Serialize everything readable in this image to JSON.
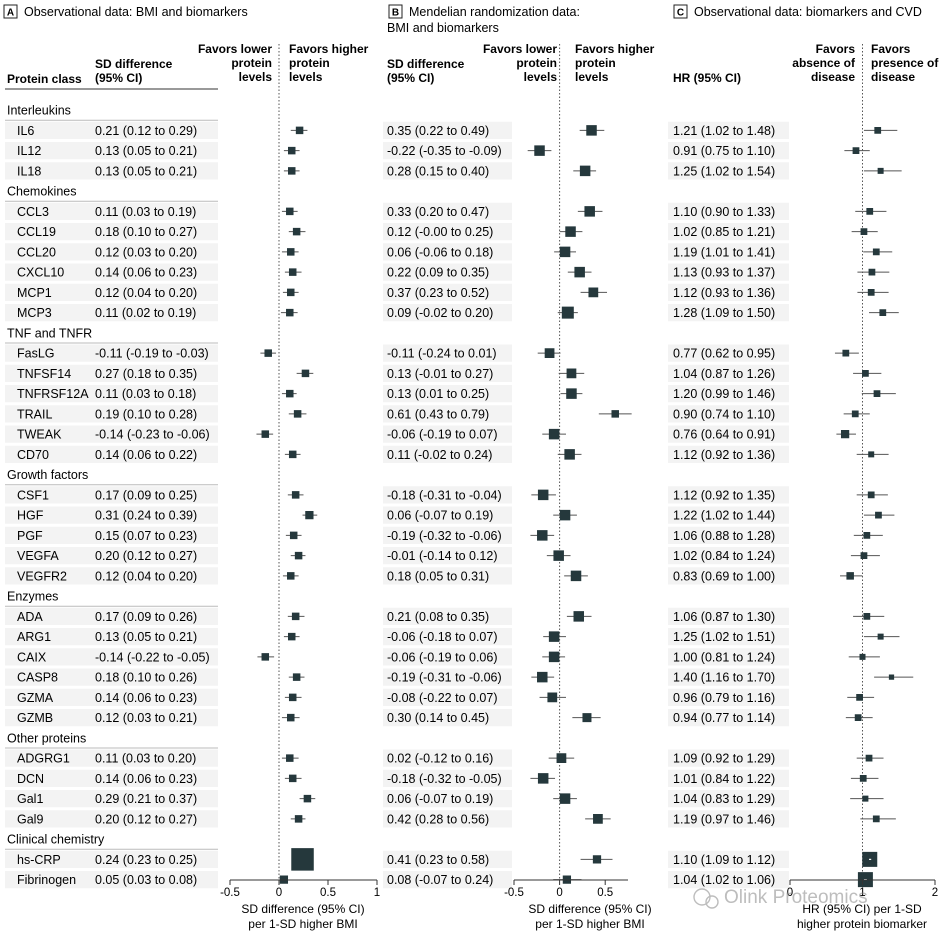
{
  "panels": [
    {
      "letter": "A",
      "title_lines": [
        "Observational data: BMI and biomarkers"
      ]
    },
    {
      "letter": "B",
      "title_lines": [
        "Mendelian randomization data:",
        "BMI and biomarkers"
      ]
    },
    {
      "letter": "C",
      "title_lines": [
        "Observational data: biomarkers and CVD"
      ]
    }
  ],
  "headers": {
    "protein_class": "Protein class",
    "a_col": [
      "SD difference",
      "(95% CI)"
    ],
    "a_favors_lower": [
      "Favors lower",
      "protein",
      "levels"
    ],
    "a_favors_higher": [
      "Favors higher",
      "protein",
      "levels"
    ],
    "b_col": [
      "SD difference",
      "(95% CI)"
    ],
    "b_favors_lower": [
      "Favors lower",
      "protein",
      "levels"
    ],
    "b_favors_higher": [
      "Favors higher",
      "protein",
      "levels"
    ],
    "c_col": [
      "HR (95% CI)"
    ],
    "c_favors_absence": [
      "Favors",
      "absence of",
      "disease"
    ],
    "c_favors_presence": [
      "Favors",
      "presence of",
      "disease"
    ]
  },
  "axes": {
    "a": {
      "ticks": [
        "-0.5",
        "0",
        "0.5",
        "1"
      ],
      "label": [
        "SD difference (95% CI)",
        "per 1-SD higher BMI"
      ]
    },
    "b": {
      "ticks": [
        "-0.5",
        "0",
        "0.5"
      ],
      "label": [
        "SD difference (95% CI)",
        "per 1-SD higher BMI"
      ]
    },
    "c": {
      "ticks": [
        "0",
        "1",
        "2"
      ],
      "label": [
        "HR (95% CI) per 1-SD",
        "higher protein biomarker"
      ]
    }
  },
  "watermark": "Olink Proteomics",
  "chart_data": {
    "type": "forest",
    "panels": [
      {
        "id": "A",
        "measure": "SD difference per 1-SD higher BMI",
        "xlim": [
          -0.5,
          1
        ],
        "ref": 0
      },
      {
        "id": "B",
        "measure": "SD difference per 1-SD higher BMI (Mendelian randomization)",
        "xlim": [
          -0.5,
          0.75
        ],
        "ref": 0
      },
      {
        "id": "C",
        "measure": "HR per 1-SD higher protein biomarker",
        "xlim": [
          0,
          2
        ],
        "ref": 1
      }
    ],
    "rows": [
      {
        "kind": "group",
        "label": "Interleukins"
      },
      {
        "kind": "item",
        "label": "IL6",
        "a": {
          "text": "0.21 (0.12 to 0.29)",
          "est": 0.21,
          "lo": 0.12,
          "hi": 0.29,
          "w": 1.0
        },
        "b": {
          "text": "0.35 (0.22 to 0.49)",
          "est": 0.35,
          "lo": 0.22,
          "hi": 0.49,
          "w": 1.4
        },
        "c": {
          "text": "1.21 (1.02 to 1.48)",
          "est": 1.21,
          "lo": 1.02,
          "hi": 1.48,
          "w": 0.9
        }
      },
      {
        "kind": "item",
        "label": "IL12",
        "a": {
          "text": "0.13 (0.05 to 0.21)",
          "est": 0.13,
          "lo": 0.05,
          "hi": 0.21,
          "w": 1.0
        },
        "b": {
          "text": "-0.22 (-0.35 to -0.09)",
          "est": -0.22,
          "lo": -0.35,
          "hi": -0.09,
          "w": 1.4
        },
        "c": {
          "text": "0.91 (0.75 to 1.10)",
          "est": 0.91,
          "lo": 0.75,
          "hi": 1.1,
          "w": 0.9
        }
      },
      {
        "kind": "item",
        "label": "IL18",
        "a": {
          "text": "0.13 (0.05 to 0.21)",
          "est": 0.13,
          "lo": 0.05,
          "hi": 0.21,
          "w": 1.0
        },
        "b": {
          "text": "0.28 (0.15 to 0.40)",
          "est": 0.28,
          "lo": 0.15,
          "hi": 0.4,
          "w": 1.4
        },
        "c": {
          "text": "1.25 (1.02 to 1.54)",
          "est": 1.25,
          "lo": 1.02,
          "hi": 1.54,
          "w": 0.8
        }
      },
      {
        "kind": "group",
        "label": "Chemokines"
      },
      {
        "kind": "item",
        "label": "CCL3",
        "a": {
          "text": "0.11 (0.03 to 0.19)",
          "est": 0.11,
          "lo": 0.03,
          "hi": 0.19,
          "w": 1.0
        },
        "b": {
          "text": "0.33 (0.20 to 0.47)",
          "est": 0.33,
          "lo": 0.2,
          "hi": 0.47,
          "w": 1.4
        },
        "c": {
          "text": "1.10 (0.90 to 1.33)",
          "est": 1.1,
          "lo": 0.9,
          "hi": 1.33,
          "w": 0.9
        }
      },
      {
        "kind": "item",
        "label": "CCL19",
        "a": {
          "text": "0.18 (0.10 to 0.27)",
          "est": 0.18,
          "lo": 0.1,
          "hi": 0.27,
          "w": 1.0
        },
        "b": {
          "text": "0.12 (-0.00 to 0.25)",
          "est": 0.12,
          "lo": 0.0,
          "hi": 0.25,
          "w": 1.4
        },
        "c": {
          "text": "1.02 (0.85 to 1.21)",
          "est": 1.02,
          "lo": 0.85,
          "hi": 1.21,
          "w": 0.9
        }
      },
      {
        "kind": "item",
        "label": "CCL20",
        "a": {
          "text": "0.12 (0.03 to 0.20)",
          "est": 0.12,
          "lo": 0.03,
          "hi": 0.2,
          "w": 1.0
        },
        "b": {
          "text": "0.06 (-0.06 to 0.18)",
          "est": 0.06,
          "lo": -0.06,
          "hi": 0.18,
          "w": 1.4
        },
        "c": {
          "text": "1.19 (1.01 to 1.41)",
          "est": 1.19,
          "lo": 1.01,
          "hi": 1.41,
          "w": 0.9
        }
      },
      {
        "kind": "item",
        "label": "CXCL10",
        "a": {
          "text": "0.14 (0.06 to 0.23)",
          "est": 0.14,
          "lo": 0.06,
          "hi": 0.23,
          "w": 1.0
        },
        "b": {
          "text": "0.22 (0.09 to 0.35)",
          "est": 0.22,
          "lo": 0.09,
          "hi": 0.35,
          "w": 1.4
        },
        "c": {
          "text": "1.13 (0.93 to 1.37)",
          "est": 1.13,
          "lo": 0.93,
          "hi": 1.37,
          "w": 0.9
        }
      },
      {
        "kind": "item",
        "label": "MCP1",
        "a": {
          "text": "0.12 (0.04 to 0.20)",
          "est": 0.12,
          "lo": 0.04,
          "hi": 0.2,
          "w": 1.0
        },
        "b": {
          "text": "0.37 (0.23 to 0.52)",
          "est": 0.37,
          "lo": 0.23,
          "hi": 0.52,
          "w": 1.3
        },
        "c": {
          "text": "1.12 (0.93 to 1.36)",
          "est": 1.12,
          "lo": 0.93,
          "hi": 1.36,
          "w": 0.9
        }
      },
      {
        "kind": "item",
        "label": "MCP3",
        "a": {
          "text": "0.11 (0.02 to 0.19)",
          "est": 0.11,
          "lo": 0.02,
          "hi": 0.19,
          "w": 1.0
        },
        "b": {
          "text": "0.09 (-0.02 to 0.20)",
          "est": 0.09,
          "lo": -0.02,
          "hi": 0.2,
          "w": 1.6
        },
        "c": {
          "text": "1.28 (1.09 to 1.50)",
          "est": 1.28,
          "lo": 1.09,
          "hi": 1.5,
          "w": 0.9
        }
      },
      {
        "kind": "group",
        "label": "TNF and TNFR"
      },
      {
        "kind": "item",
        "label": "FasLG",
        "a": {
          "text": "-0.11 (-0.19 to -0.03)",
          "est": -0.11,
          "lo": -0.19,
          "hi": -0.03,
          "w": 1.0
        },
        "b": {
          "text": "-0.11 (-0.24 to 0.01)",
          "est": -0.11,
          "lo": -0.24,
          "hi": 0.01,
          "w": 1.3
        },
        "c": {
          "text": "0.77 (0.62 to 0.95)",
          "est": 0.77,
          "lo": 0.62,
          "hi": 0.95,
          "w": 0.9
        }
      },
      {
        "kind": "item",
        "label": "TNFSF14",
        "a": {
          "text": "0.27 (0.18 to 0.35)",
          "est": 0.27,
          "lo": 0.18,
          "hi": 0.35,
          "w": 1.0
        },
        "b": {
          "text": "0.13 (-0.01 to 0.27)",
          "est": 0.13,
          "lo": -0.01,
          "hi": 0.27,
          "w": 1.3
        },
        "c": {
          "text": "1.04 (0.87 to 1.26)",
          "est": 1.04,
          "lo": 0.87,
          "hi": 1.26,
          "w": 0.9
        }
      },
      {
        "kind": "item",
        "label": "TNFRSF12A",
        "a": {
          "text": "0.11 (0.03 to 0.18)",
          "est": 0.11,
          "lo": 0.03,
          "hi": 0.18,
          "w": 1.0
        },
        "b": {
          "text": "0.13 (0.01 to 0.25)",
          "est": 0.13,
          "lo": 0.01,
          "hi": 0.25,
          "w": 1.4
        },
        "c": {
          "text": "1.20 (0.99 to 1.46)",
          "est": 1.2,
          "lo": 0.99,
          "hi": 1.46,
          "w": 0.9
        }
      },
      {
        "kind": "item",
        "label": "TRAIL",
        "a": {
          "text": "0.19 (0.10 to 0.28)",
          "est": 0.19,
          "lo": 0.1,
          "hi": 0.28,
          "w": 1.0
        },
        "b": {
          "text": "0.61 (0.43 to 0.79)",
          "est": 0.61,
          "lo": 0.43,
          "hi": 0.79,
          "w": 1.0
        },
        "c": {
          "text": "0.90 (0.74 to 1.10)",
          "est": 0.9,
          "lo": 0.74,
          "hi": 1.1,
          "w": 0.9
        }
      },
      {
        "kind": "item",
        "label": "TWEAK",
        "a": {
          "text": "-0.14 (-0.23 to -0.06)",
          "est": -0.14,
          "lo": -0.23,
          "hi": -0.06,
          "w": 1.0
        },
        "b": {
          "text": "-0.06 (-0.19 to 0.07)",
          "est": -0.06,
          "lo": -0.19,
          "hi": 0.07,
          "w": 1.4
        },
        "c": {
          "text": "0.76 (0.64 to 0.91)",
          "est": 0.76,
          "lo": 0.64,
          "hi": 0.91,
          "w": 1.1
        }
      },
      {
        "kind": "item",
        "label": "CD70",
        "a": {
          "text": "0.14 (0.06 to 0.22)",
          "est": 0.14,
          "lo": 0.06,
          "hi": 0.22,
          "w": 1.0
        },
        "b": {
          "text": "0.11 (-0.02 to 0.24)",
          "est": 0.11,
          "lo": -0.02,
          "hi": 0.24,
          "w": 1.4
        },
        "c": {
          "text": "1.12 (0.92 to 1.36)",
          "est": 1.12,
          "lo": 0.92,
          "hi": 1.36,
          "w": 0.8
        }
      },
      {
        "kind": "group",
        "label": "Growth factors"
      },
      {
        "kind": "item",
        "label": "CSF1",
        "a": {
          "text": "0.17 (0.09 to 0.25)",
          "est": 0.17,
          "lo": 0.09,
          "hi": 0.25,
          "w": 1.0
        },
        "b": {
          "text": "-0.18 (-0.31 to -0.04)",
          "est": -0.18,
          "lo": -0.31,
          "hi": -0.04,
          "w": 1.4
        },
        "c": {
          "text": "1.12 (0.92 to 1.35)",
          "est": 1.12,
          "lo": 0.92,
          "hi": 1.35,
          "w": 0.9
        }
      },
      {
        "kind": "item",
        "label": "HGF",
        "a": {
          "text": "0.31 (0.24 to 0.39)",
          "est": 0.31,
          "lo": 0.24,
          "hi": 0.39,
          "w": 1.1
        },
        "b": {
          "text": "0.06 (-0.07 to 0.19)",
          "est": 0.06,
          "lo": -0.07,
          "hi": 0.19,
          "w": 1.4
        },
        "c": {
          "text": "1.22 (1.02 to 1.44)",
          "est": 1.22,
          "lo": 1.02,
          "hi": 1.44,
          "w": 0.9
        }
      },
      {
        "kind": "item",
        "label": "PGF",
        "a": {
          "text": "0.15 (0.07 to 0.23)",
          "est": 0.15,
          "lo": 0.07,
          "hi": 0.23,
          "w": 1.0
        },
        "b": {
          "text": "-0.19 (-0.32 to -0.06)",
          "est": -0.19,
          "lo": -0.32,
          "hi": -0.06,
          "w": 1.4
        },
        "c": {
          "text": "1.06 (0.88 to 1.28)",
          "est": 1.06,
          "lo": 0.88,
          "hi": 1.28,
          "w": 0.9
        }
      },
      {
        "kind": "item",
        "label": "VEGFA",
        "a": {
          "text": "0.20 (0.12 to 0.27)",
          "est": 0.2,
          "lo": 0.12,
          "hi": 0.27,
          "w": 1.0
        },
        "b": {
          "text": "-0.01 (-0.14 to 0.12)",
          "est": -0.01,
          "lo": -0.14,
          "hi": 0.12,
          "w": 1.4
        },
        "c": {
          "text": "1.02 (0.84 to 1.24)",
          "est": 1.02,
          "lo": 0.84,
          "hi": 1.24,
          "w": 0.9
        }
      },
      {
        "kind": "item",
        "label": "VEGFR2",
        "a": {
          "text": "0.12 (0.04 to 0.20)",
          "est": 0.12,
          "lo": 0.04,
          "hi": 0.2,
          "w": 1.0
        },
        "b": {
          "text": "0.18 (0.05 to 0.31)",
          "est": 0.18,
          "lo": 0.05,
          "hi": 0.31,
          "w": 1.4
        },
        "c": {
          "text": "0.83 (0.69 to 1.00)",
          "est": 0.83,
          "lo": 0.69,
          "hi": 1.0,
          "w": 1.0
        }
      },
      {
        "kind": "group",
        "label": "Enzymes"
      },
      {
        "kind": "item",
        "label": "ADA",
        "a": {
          "text": "0.17 (0.09 to 0.26)",
          "est": 0.17,
          "lo": 0.09,
          "hi": 0.26,
          "w": 1.0
        },
        "b": {
          "text": "0.21 (0.08 to 0.35)",
          "est": 0.21,
          "lo": 0.08,
          "hi": 0.35,
          "w": 1.4
        },
        "c": {
          "text": "1.06 (0.87 to 1.30)",
          "est": 1.06,
          "lo": 0.87,
          "hi": 1.3,
          "w": 0.9
        }
      },
      {
        "kind": "item",
        "label": "ARG1",
        "a": {
          "text": "0.13 (0.05 to 0.21)",
          "est": 0.13,
          "lo": 0.05,
          "hi": 0.21,
          "w": 1.0
        },
        "b": {
          "text": "-0.06 (-0.18 to 0.07)",
          "est": -0.06,
          "lo": -0.18,
          "hi": 0.07,
          "w": 1.4
        },
        "c": {
          "text": "1.25 (1.02 to 1.51)",
          "est": 1.25,
          "lo": 1.02,
          "hi": 1.51,
          "w": 0.8
        }
      },
      {
        "kind": "item",
        "label": "CAIX",
        "a": {
          "text": "-0.14 (-0.22 to -0.05)",
          "est": -0.14,
          "lo": -0.22,
          "hi": -0.05,
          "w": 1.0
        },
        "b": {
          "text": "-0.06 (-0.19 to 0.06)",
          "est": -0.06,
          "lo": -0.19,
          "hi": 0.06,
          "w": 1.4
        },
        "c": {
          "text": "1.00 (0.81 to 1.24)",
          "est": 1.0,
          "lo": 0.81,
          "hi": 1.24,
          "w": 0.8
        }
      },
      {
        "kind": "item",
        "label": "CASP8",
        "a": {
          "text": "0.18 (0.10 to 0.26)",
          "est": 0.18,
          "lo": 0.1,
          "hi": 0.26,
          "w": 1.0
        },
        "b": {
          "text": "-0.19 (-0.31 to -0.06)",
          "est": -0.19,
          "lo": -0.31,
          "hi": -0.06,
          "w": 1.4
        },
        "c": {
          "text": "1.40 (1.16 to 1.70)",
          "est": 1.4,
          "lo": 1.16,
          "hi": 1.7,
          "w": 0.7
        }
      },
      {
        "kind": "item",
        "label": "GZMA",
        "a": {
          "text": "0.14 (0.06 to 0.23)",
          "est": 0.14,
          "lo": 0.06,
          "hi": 0.23,
          "w": 1.0
        },
        "b": {
          "text": "-0.08  (-0.22 to 0.07)",
          "est": -0.08,
          "lo": -0.22,
          "hi": 0.07,
          "w": 1.3
        },
        "c": {
          "text": "0.96 (0.79 to 1.16)",
          "est": 0.96,
          "lo": 0.79,
          "hi": 1.16,
          "w": 0.9
        }
      },
      {
        "kind": "item",
        "label": "GZMB",
        "a": {
          "text": "0.12 (0.03 to 0.21)",
          "est": 0.12,
          "lo": 0.03,
          "hi": 0.21,
          "w": 1.0
        },
        "b": {
          "text": "0.30 (0.14 to 0.45)",
          "est": 0.3,
          "lo": 0.14,
          "hi": 0.45,
          "w": 1.2
        },
        "c": {
          "text": "0.94 (0.77 to 1.14)",
          "est": 0.94,
          "lo": 0.77,
          "hi": 1.14,
          "w": 0.9
        }
      },
      {
        "kind": "group",
        "label": "Other proteins"
      },
      {
        "kind": "item",
        "label": "ADGRG1",
        "a": {
          "text": "0.11 (0.03 to 0.20)",
          "est": 0.11,
          "lo": 0.03,
          "hi": 0.2,
          "w": 1.0
        },
        "b": {
          "text": "0.02 (-0.12 to 0.16)",
          "est": 0.02,
          "lo": -0.12,
          "hi": 0.16,
          "w": 1.3
        },
        "c": {
          "text": "1.09 (0.92 to 1.29)",
          "est": 1.09,
          "lo": 0.92,
          "hi": 1.29,
          "w": 0.9
        }
      },
      {
        "kind": "item",
        "label": "DCN",
        "a": {
          "text": "0.14 (0.06 to 0.23)",
          "est": 0.14,
          "lo": 0.06,
          "hi": 0.23,
          "w": 1.0
        },
        "b": {
          "text": "-0.18 (-0.32 to -0.05)",
          "est": -0.18,
          "lo": -0.32,
          "hi": -0.05,
          "w": 1.4
        },
        "c": {
          "text": "1.01 (0.84 to 1.22)",
          "est": 1.01,
          "lo": 0.84,
          "hi": 1.22,
          "w": 0.9
        }
      },
      {
        "kind": "item",
        "label": "Gal1",
        "a": {
          "text": "0.29 (0.21 to 0.37)",
          "est": 0.29,
          "lo": 0.21,
          "hi": 0.37,
          "w": 1.0
        },
        "b": {
          "text": "0.06 (-0.07 to 0.19)",
          "est": 0.06,
          "lo": -0.07,
          "hi": 0.19,
          "w": 1.4
        },
        "c": {
          "text": "1.04 (0.83 to 1.29)",
          "est": 1.04,
          "lo": 0.83,
          "hi": 1.29,
          "w": 0.8
        }
      },
      {
        "kind": "item",
        "label": "Gal9",
        "a": {
          "text": "0.20 (0.12 to 0.27)",
          "est": 0.2,
          "lo": 0.12,
          "hi": 0.27,
          "w": 1.0
        },
        "b": {
          "text": "0.42 (0.28 to 0.56)",
          "est": 0.42,
          "lo": 0.28,
          "hi": 0.56,
          "w": 1.3
        },
        "c": {
          "text": "1.19 (0.97 to 1.46)",
          "est": 1.19,
          "lo": 0.97,
          "hi": 1.46,
          "w": 0.9
        }
      },
      {
        "kind": "group",
        "label": "Clinical chemistry"
      },
      {
        "kind": "item",
        "label": "hs-CRP",
        "a": {
          "text": "0.24 (0.23 to 0.25)",
          "est": 0.24,
          "lo": 0.23,
          "hi": 0.25,
          "w": 3.0
        },
        "b": {
          "text": "0.41 (0.23 to 0.58)",
          "est": 0.41,
          "lo": 0.23,
          "hi": 0.58,
          "w": 1.1
        },
        "c": {
          "text": "1.10 (1.09 to 1.12)",
          "est": 1.1,
          "lo": 1.09,
          "hi": 1.12,
          "w": 2.0
        }
      },
      {
        "kind": "item",
        "label": "Fibrinogen",
        "a": {
          "text": "0.05 (0.03 to 0.08)",
          "est": 0.05,
          "lo": 0.03,
          "hi": 0.08,
          "w": 1.1
        },
        "b": {
          "text": "0.08 (-0.07 to 0.24)",
          "est": 0.08,
          "lo": -0.07,
          "hi": 0.24,
          "w": 1.1
        },
        "c": {
          "text": "1.04 (1.02 to 1.06)",
          "est": 1.04,
          "lo": 1.02,
          "hi": 1.06,
          "w": 2.0
        }
      }
    ]
  }
}
